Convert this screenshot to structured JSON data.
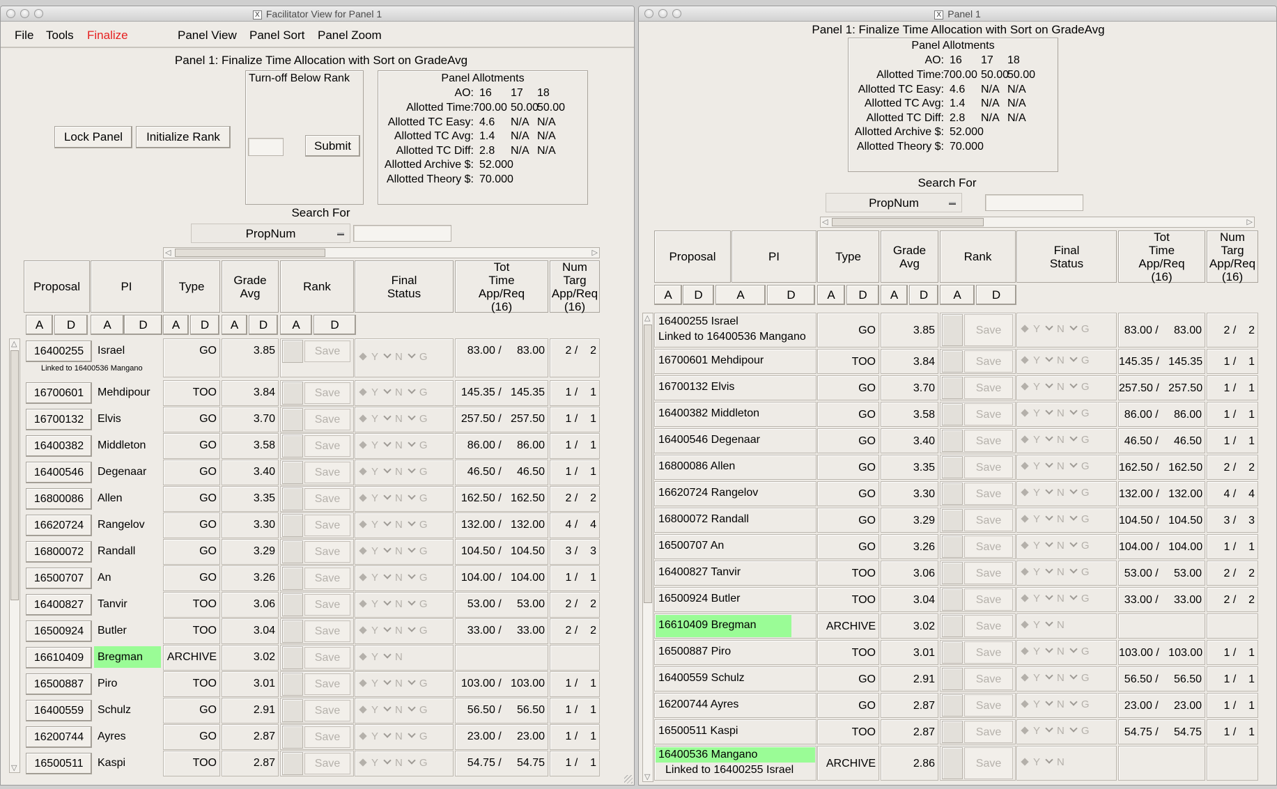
{
  "window1": {
    "title": "Facilitator View for Panel 1",
    "menu": [
      "File",
      "Tools",
      "Finalize",
      "Panel View",
      "Panel Sort",
      "Panel Zoom"
    ],
    "heading": "Panel 1: Finalize Time Allocation with Sort on GradeAvg",
    "lock_label": "Lock Panel",
    "init_rank_label": "Initialize Rank",
    "turnoff_label": "Turn-off Below Rank",
    "turnoff_value": "",
    "submit_label": "Submit",
    "search_label": "Search For",
    "search_select": "PropNum",
    "search_value": ""
  },
  "window2": {
    "title": "Panel 1",
    "heading": "Panel 1: Finalize Time Allocation with Sort on GradeAvg",
    "search_label": "Search For",
    "search_select": "PropNum",
    "search_value": ""
  },
  "allotments": {
    "title": "Panel Allotments",
    "ao_label": "AO:",
    "ao": [
      "16",
      "17",
      "18"
    ],
    "rows": [
      {
        "label": "Allotted Time:",
        "vals": [
          "700.00",
          "50.00",
          "50.00"
        ]
      },
      {
        "label": "Allotted TC Easy:",
        "vals": [
          "4.6",
          "N/A",
          "N/A"
        ]
      },
      {
        "label": "Allotted TC Avg:",
        "vals": [
          "1.4",
          "N/A",
          "N/A"
        ]
      },
      {
        "label": "Allotted TC Diff:",
        "vals": [
          "2.8",
          "N/A",
          "N/A"
        ]
      }
    ],
    "archive_label": "Allotted Archive $:",
    "archive_value": "52.000",
    "theory_label": "Allotted Theory $:",
    "theory_value": "70.000"
  },
  "columns": {
    "proposal": "Proposal",
    "pi": "PI",
    "type": "Type",
    "grade_avg": "Grade\nAvg",
    "rank": "Rank",
    "final_status": "Final\nStatus",
    "tot_time": "Tot\nTime\nApp/Req\n(16)",
    "num_targ": "Num\nTarg\nApp/Req\n(16)"
  },
  "sort_a": "A",
  "sort_d": "D",
  "save_label": "Save",
  "status_y": "Y",
  "status_n": "N",
  "status_g": "G",
  "colors": {
    "highlight": "#9afc96",
    "menu_accent": "#e62020"
  },
  "rows": [
    {
      "prop": "16400255",
      "pi": "Israel",
      "link": "Linked to 16400536 Mangano",
      "type": "GO",
      "grade": "3.85",
      "time": "83.00 /     83.00",
      "targ": "2 /    2",
      "hl": false
    },
    {
      "prop": "16700601",
      "pi": "Mehdipour",
      "type": "TOO",
      "grade": "3.84",
      "time": "145.35 /   145.35",
      "targ": "1 /    1",
      "hl": false
    },
    {
      "prop": "16700132",
      "pi": "Elvis",
      "type": "GO",
      "grade": "3.70",
      "time": "257.50 /   257.50",
      "targ": "1 /    1",
      "hl": false
    },
    {
      "prop": "16400382",
      "pi": "Middleton",
      "type": "GO",
      "grade": "3.58",
      "time": "86.00 /     86.00",
      "targ": "1 /    1",
      "hl": false
    },
    {
      "prop": "16400546",
      "pi": "Degenaar",
      "type": "GO",
      "grade": "3.40",
      "time": "46.50 /     46.50",
      "targ": "1 /    1",
      "hl": false
    },
    {
      "prop": "16800086",
      "pi": "Allen",
      "type": "GO",
      "grade": "3.35",
      "time": "162.50 /   162.50",
      "targ": "2 /    2",
      "hl": false
    },
    {
      "prop": "16620724",
      "pi": "Rangelov",
      "type": "GO",
      "grade": "3.30",
      "time": "132.00 /   132.00",
      "targ": "4 /    4",
      "hl": false
    },
    {
      "prop": "16800072",
      "pi": "Randall",
      "type": "GO",
      "grade": "3.29",
      "time": "104.50 /   104.50",
      "targ": "3 /    3",
      "hl": false
    },
    {
      "prop": "16500707",
      "pi": "An",
      "type": "GO",
      "grade": "3.26",
      "time": "104.00 /   104.00",
      "targ": "1 /    1",
      "hl": false
    },
    {
      "prop": "16400827",
      "pi": "Tanvir",
      "type": "TOO",
      "grade": "3.06",
      "time": "53.00 /     53.00",
      "targ": "2 /    2",
      "hl": false
    },
    {
      "prop": "16500924",
      "pi": "Butler",
      "type": "TOO",
      "grade": "3.04",
      "time": "33.00 /     33.00",
      "targ": "2 /    2",
      "hl": false
    },
    {
      "prop": "16610409",
      "pi": "Bregman",
      "type": "ARCHIVE",
      "grade": "3.02",
      "time": "",
      "targ": "",
      "hl": true
    },
    {
      "prop": "16500887",
      "pi": "Piro",
      "type": "TOO",
      "grade": "3.01",
      "time": "103.00 /   103.00",
      "targ": "1 /    1",
      "hl": false
    },
    {
      "prop": "16400559",
      "pi": "Schulz",
      "type": "GO",
      "grade": "2.91",
      "time": "56.50 /     56.50",
      "targ": "1 /    1",
      "hl": false
    },
    {
      "prop": "16200744",
      "pi": "Ayres",
      "type": "GO",
      "grade": "2.87",
      "time": "23.00 /     23.00",
      "targ": "1 /    1",
      "hl": false
    },
    {
      "prop": "16500511",
      "pi": "Kaspi",
      "type": "TOO",
      "grade": "2.87",
      "time": "54.75 /     54.75",
      "targ": "1 /    1",
      "hl": false
    },
    {
      "prop": "16400536",
      "pi": "Mangano",
      "link": "Linked to 16400255 Israel",
      "type": "ARCHIVE",
      "grade": "2.86",
      "time": "",
      "targ": "",
      "hl": true
    }
  ]
}
